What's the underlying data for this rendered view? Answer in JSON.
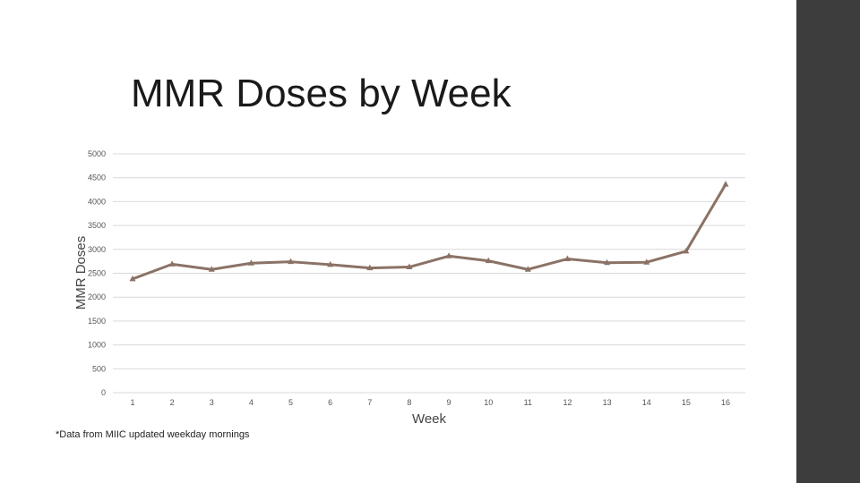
{
  "slide": {
    "title": "MMR Doses by Week",
    "footnote": "*Data from MIIC updated weekday mornings"
  },
  "colors": {
    "line": "#8b7266",
    "grid": "#d9d9d9",
    "side_bar": "#3d3d3d"
  },
  "chart_data": {
    "type": "line",
    "title": "MMR Doses by Week",
    "xlabel": "Week",
    "ylabel": "MMR Doses",
    "categories": [
      "1",
      "2",
      "3",
      "4",
      "5",
      "6",
      "7",
      "8",
      "9",
      "10",
      "11",
      "12",
      "13",
      "14",
      "15",
      "16"
    ],
    "series": [
      {
        "values": [
          2380,
          2690,
          2580,
          2710,
          2740,
          2680,
          2610,
          2630,
          2860,
          2760,
          2580,
          2800,
          2720,
          2730,
          2960,
          4360
        ]
      }
    ],
    "ylim": [
      0,
      5000
    ],
    "yticks": [
      0,
      500,
      1000,
      1500,
      2000,
      2500,
      3000,
      3500,
      4000,
      4500,
      5000
    ],
    "grid": true,
    "legend": "none",
    "marker": "triangle"
  }
}
